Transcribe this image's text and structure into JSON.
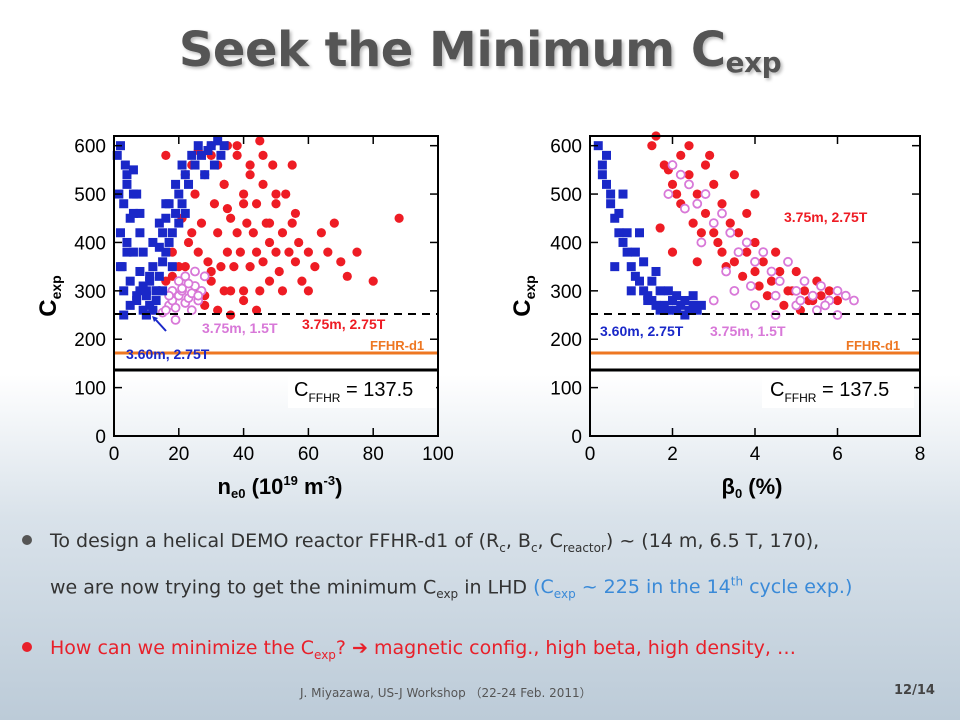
{
  "title": {
    "main": "Seek the Minimum C",
    "sub": "exp"
  },
  "bullets": [
    {
      "line1_a": "To design a helical DEMO reactor FFHR-d1 of (R",
      "line1_sub1": "c",
      "line1_b": ", B",
      "line1_sub2": "c",
      "line1_c": ", C",
      "line1_sub3": "reactor",
      "line1_d": ") ~ (14 m, 6.5 T, 170),",
      "line2_a": "we are now trying to get the minimum C",
      "line2_sub1": "exp",
      "line2_b": " in LHD ",
      "line2_blue_a": "(C",
      "line2_blue_sub": "exp",
      "line2_blue_b": " ~ 225 in the 14",
      "line2_blue_sup": "th",
      "line2_blue_c": " cycle exp.)"
    },
    {
      "text_a": "How can we minimize the C",
      "text_sub": "exp",
      "text_b": "? ",
      "arrow": "➔",
      "text_c": " magnetic config., high beta, high density, …"
    }
  ],
  "footer": "J. Miyazawa, US-J Workshop （22-24 Feb. 2011）",
  "page_number": "12/14",
  "colors": {
    "red": "#ee1c24",
    "blue": "#1a28c8",
    "pink": "#d878d8",
    "orange": "#ee7722"
  },
  "chart_data": [
    {
      "type": "scatter",
      "xlabel": "n_e0 (10^19 m^-3)",
      "xlabel_parts": {
        "a": "n",
        "sub": "e0",
        "b": " (10",
        "sup1": "19",
        "c": " m",
        "sup2": "-3",
        "d": ")"
      },
      "ylabel": "C_exp",
      "ylabel_parts": {
        "a": "C",
        "sub": "exp"
      },
      "xlim": [
        0,
        100
      ],
      "ylim": [
        0,
        620
      ],
      "xticks": [
        "0",
        "20",
        "40",
        "60",
        "80",
        "100"
      ],
      "yticks": [
        "0",
        "100",
        "200",
        "300",
        "400",
        "500",
        "600"
      ],
      "xtick_values": [
        0,
        20,
        40,
        60,
        80,
        100
      ],
      "ytick_values": [
        0,
        100,
        200,
        300,
        400,
        500,
        600
      ],
      "reference_lines": [
        {
          "y": 250,
          "style": "dashed",
          "color": "#000000"
        },
        {
          "y": 170,
          "style": "solid",
          "color": "#ee7722",
          "label": "FFHR-d1"
        },
        {
          "y": 137.5,
          "style": "solid",
          "color": "#000000"
        }
      ],
      "cffhr_label": {
        "a": "C",
        "sub": "FFHR",
        "b": " = 137.5"
      },
      "series": [
        {
          "name": "3.75m, 2.75T",
          "color": "#ee1c24",
          "marker": "circle",
          "x": [
            12,
            14,
            16,
            18,
            18,
            20,
            21,
            22,
            23,
            24,
            25,
            25,
            26,
            27,
            28,
            28,
            29,
            30,
            30,
            31,
            32,
            32,
            33,
            34,
            34,
            35,
            35,
            36,
            36,
            37,
            38,
            38,
            39,
            40,
            40,
            41,
            42,
            42,
            43,
            44,
            44,
            45,
            46,
            46,
            47,
            48,
            48,
            49,
            50,
            50,
            51,
            52,
            52,
            53,
            54,
            55,
            56,
            57,
            58,
            60,
            62,
            64,
            66,
            68,
            70,
            72,
            75,
            80,
            88,
            28,
            32,
            36,
            40,
            44,
            24,
            30,
            34,
            38,
            42,
            46,
            50,
            26,
            22,
            35,
            45,
            55,
            20,
            16,
            60,
            56,
            30,
            40,
            48
          ],
          "y": [
            260,
            300,
            320,
            330,
            380,
            290,
            450,
            350,
            400,
            420,
            300,
            500,
            380,
            440,
            290,
            540,
            360,
            320,
            600,
            480,
            420,
            560,
            350,
            300,
            520,
            380,
            600,
            450,
            300,
            350,
            580,
            420,
            380,
            300,
            500,
            440,
            350,
            560,
            420,
            380,
            480,
            300,
            520,
            360,
            440,
            400,
            320,
            560,
            380,
            480,
            340,
            420,
            300,
            500,
            380,
            440,
            360,
            400,
            320,
            380,
            350,
            420,
            380,
            440,
            360,
            330,
            380,
            320,
            450,
            270,
            260,
            250,
            280,
            260,
            560,
            580,
            520,
            600,
            540,
            580,
            500,
            590,
            540,
            470,
            610,
            560,
            350,
            580,
            300,
            460,
            340,
            480,
            440
          ]
        },
        {
          "name": "3.75m, 1.5T",
          "color": "#d878d8",
          "marker": "circle-open",
          "x": [
            15,
            17,
            18,
            19,
            20,
            21,
            22,
            23,
            24,
            25,
            26,
            27,
            20,
            22,
            24,
            18,
            16,
            21,
            23,
            26,
            28,
            19,
            17,
            25
          ],
          "y": [
            255,
            270,
            280,
            265,
            290,
            300,
            275,
            285,
            295,
            310,
            280,
            300,
            320,
            330,
            260,
            300,
            260,
            305,
            315,
            290,
            330,
            240,
            290,
            340
          ]
        },
        {
          "name": "3.60m, 2.75T",
          "color": "#1a28c8",
          "marker": "square",
          "x": [
            1,
            1.5,
            2,
            2,
            2.5,
            3,
            3,
            3.5,
            4,
            4,
            5,
            5,
            6,
            6,
            7,
            7,
            8,
            8,
            9,
            9,
            10,
            10,
            11,
            11,
            12,
            12,
            13,
            13,
            14,
            14,
            15,
            15,
            16,
            16,
            17,
            17,
            18,
            18,
            19,
            19,
            20,
            20,
            21,
            21,
            22,
            22,
            23,
            24,
            25,
            26,
            27,
            28,
            29,
            30,
            31,
            32,
            33,
            34,
            3,
            5,
            7,
            9,
            11,
            13,
            15,
            4,
            6,
            8,
            10,
            12,
            14,
            16,
            2,
            4,
            6,
            8,
            10
          ],
          "y": [
            580,
            500,
            420,
            600,
            350,
            480,
            300,
            560,
            400,
            520,
            320,
            450,
            380,
            550,
            280,
            500,
            340,
            420,
            260,
            380,
            300,
            250,
            320,
            270,
            260,
            350,
            300,
            280,
            330,
            390,
            300,
            420,
            380,
            450,
            400,
            480,
            420,
            350,
            460,
            520,
            500,
            440,
            480,
            560,
            540,
            460,
            520,
            580,
            560,
            600,
            580,
            540,
            590,
            600,
            560,
            610,
            580,
            600,
            250,
            270,
            290,
            310,
            330,
            300,
            360,
            540,
            500,
            460,
            290,
            400,
            440,
            480,
            350,
            380,
            460,
            300,
            250
          ]
        }
      ],
      "annotations": [
        {
          "text": "3.75m, 1.5T",
          "color": "#d878d8"
        },
        {
          "text": "3.75m, 2.75T",
          "color": "#ee1c24"
        },
        {
          "text": "3.60m, 2.75T",
          "color": "#1a28c8"
        },
        {
          "text": "FFHR-d1",
          "color": "#ee7722"
        }
      ]
    },
    {
      "type": "scatter",
      "xlabel": "β0 (%)",
      "xlabel_parts": {
        "a": "β",
        "sub": "0",
        "b": " (%)"
      },
      "ylabel": "C_exp",
      "ylabel_parts": {
        "a": "C",
        "sub": "exp"
      },
      "xlim": [
        0,
        8
      ],
      "ylim": [
        0,
        620
      ],
      "xticks": [
        "0",
        "2",
        "4",
        "6",
        "8"
      ],
      "yticks": [
        "0",
        "100",
        "200",
        "300",
        "400",
        "500",
        "600"
      ],
      "xtick_values": [
        0,
        2,
        4,
        6,
        8
      ],
      "ytick_values": [
        0,
        100,
        200,
        300,
        400,
        500,
        600
      ],
      "reference_lines": [
        {
          "y": 250,
          "style": "dashed",
          "color": "#000000"
        },
        {
          "y": 170,
          "style": "solid",
          "color": "#ee7722",
          "label": "FFHR-d1"
        },
        {
          "y": 137.5,
          "style": "solid",
          "color": "#000000"
        }
      ],
      "cffhr_label": {
        "a": "C",
        "sub": "FFHR",
        "b": " = 137.5"
      },
      "series": [
        {
          "name": "3.75m, 2.75T",
          "color": "#ee1c24",
          "marker": "circle",
          "x": [
            1.5,
            1.8,
            2.0,
            2.2,
            2.2,
            2.4,
            2.5,
            2.6,
            2.8,
            2.8,
            3.0,
            3.0,
            3.2,
            3.2,
            3.4,
            3.5,
            3.6,
            3.8,
            3.8,
            4.0,
            4.0,
            4.2,
            4.4,
            4.5,
            4.6,
            4.8,
            5.0,
            5.2,
            5.4,
            5.5,
            5.8,
            6.0,
            1.6,
            1.9,
            2.1,
            2.3,
            2.7,
            3.1,
            3.3,
            3.7,
            4.1,
            4.3,
            4.7,
            4.9,
            5.1,
            5.3,
            5.6,
            2.4,
            2.9,
            3.5,
            4.0,
            1.7,
            2.0,
            2.6
          ],
          "y": [
            600,
            560,
            520,
            580,
            480,
            540,
            440,
            500,
            460,
            560,
            420,
            520,
            380,
            480,
            440,
            360,
            420,
            380,
            460,
            340,
            400,
            360,
            320,
            380,
            340,
            300,
            340,
            300,
            280,
            320,
            300,
            280,
            620,
            550,
            500,
            470,
            420,
            400,
            350,
            330,
            310,
            290,
            270,
            300,
            260,
            280,
            290,
            600,
            580,
            540,
            500,
            430,
            380,
            360
          ]
        },
        {
          "name": "3.75m, 1.5T",
          "color": "#d878d8",
          "marker": "circle-open",
          "x": [
            2.0,
            2.2,
            2.4,
            2.6,
            2.8,
            3.0,
            3.2,
            3.4,
            3.6,
            3.8,
            4.0,
            4.2,
            4.4,
            4.6,
            4.8,
            5.0,
            5.2,
            5.4,
            5.6,
            5.8,
            6.0,
            6.2,
            6.4,
            2.5,
            3.0,
            3.5,
            4.0,
            4.5,
            5.0,
            5.5,
            6.0,
            1.9,
            2.3,
            2.7,
            3.3,
            3.9,
            4.5,
            5.1,
            5.7
          ],
          "y": [
            560,
            540,
            520,
            480,
            500,
            440,
            460,
            420,
            380,
            400,
            360,
            380,
            340,
            320,
            360,
            300,
            320,
            290,
            310,
            280,
            300,
            290,
            280,
            260,
            280,
            300,
            270,
            250,
            270,
            260,
            250,
            500,
            470,
            400,
            340,
            310,
            290,
            280,
            270
          ]
        },
        {
          "name": "3.60m, 2.75T",
          "color": "#1a28c8",
          "marker": "square",
          "x": [
            0.2,
            0.3,
            0.4,
            0.5,
            0.6,
            0.7,
            0.8,
            0.9,
            1.0,
            1.1,
            1.2,
            1.3,
            1.4,
            1.5,
            1.6,
            1.7,
            1.8,
            1.9,
            2.0,
            2.1,
            2.2,
            2.3,
            2.4,
            2.5,
            2.6,
            2.7,
            0.3,
            0.5,
            0.7,
            0.9,
            1.1,
            1.3,
            1.5,
            1.7,
            1.9,
            2.1,
            2.3,
            2.5,
            0.6,
            1.0,
            1.4,
            1.8,
            0.4,
            0.8,
            1.2,
            1.6
          ],
          "y": [
            600,
            560,
            520,
            480,
            450,
            420,
            400,
            380,
            350,
            330,
            320,
            300,
            290,
            280,
            270,
            260,
            270,
            260,
            280,
            260,
            270,
            250,
            260,
            270,
            260,
            270,
            540,
            500,
            460,
            420,
            380,
            360,
            320,
            300,
            300,
            290,
            280,
            290,
            350,
            300,
            280,
            260,
            580,
            500,
            420,
            340
          ]
        }
      ],
      "annotations": [
        {
          "text": "3.75m, 2.75T",
          "color": "#ee1c24"
        },
        {
          "text": "3.60m, 2.75T",
          "color": "#1a28c8"
        },
        {
          "text": "3.75m, 1.5T",
          "color": "#d878d8"
        },
        {
          "text": "FFHR-d1",
          "color": "#ee7722"
        }
      ]
    }
  ]
}
